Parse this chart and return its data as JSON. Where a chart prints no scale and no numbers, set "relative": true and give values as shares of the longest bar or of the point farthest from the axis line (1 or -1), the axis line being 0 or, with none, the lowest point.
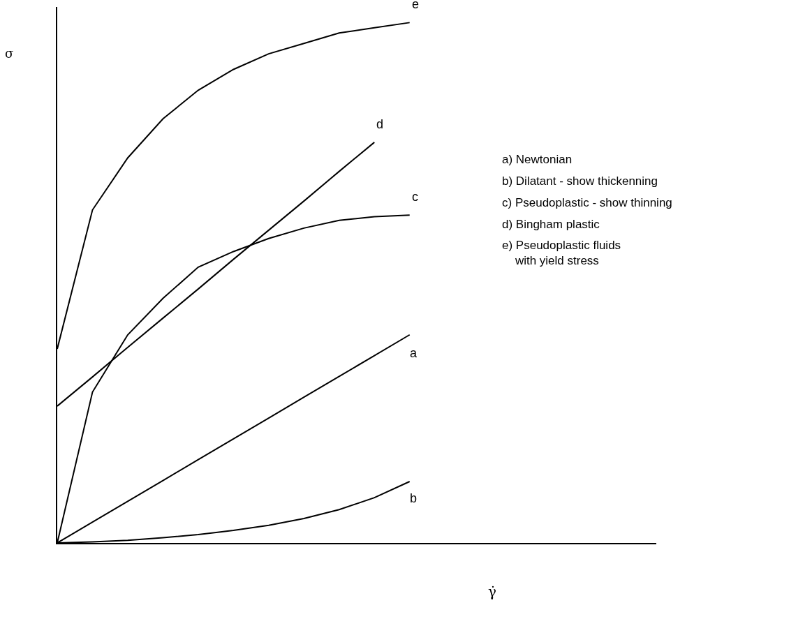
{
  "chart_data": {
    "type": "line",
    "relative": true,
    "xlabel": "γ̇",
    "ylabel": "σ",
    "legend": false,
    "marker": "none",
    "line_style": "solid",
    "categories": [
      null,
      null,
      null,
      null,
      null,
      null,
      null,
      null,
      null,
      null,
      null,
      null,
      null,
      null,
      null,
      null,
      null,
      null
    ],
    "series": [
      {
        "name": "a",
        "color": "#000000",
        "values": [
          0,
          0.04,
          0.08,
          0.12,
          0.16,
          0.2,
          0.24,
          0.28,
          0.32,
          0.36,
          0.4,
          null,
          null,
          null,
          null,
          null,
          null,
          null
        ]
      },
      {
        "name": "b",
        "color": "#000000",
        "values": [
          0,
          0.002,
          0.005,
          0.01,
          0.016,
          0.024,
          0.034,
          0.047,
          0.064,
          0.087,
          0.118,
          null,
          null,
          null,
          null,
          null,
          null,
          null
        ]
      },
      {
        "name": "c",
        "color": "#000000",
        "values": [
          0,
          0.29,
          0.4,
          0.47,
          0.53,
          0.56,
          0.585,
          0.605,
          0.62,
          0.627,
          0.63,
          null,
          null,
          null,
          null,
          null,
          null,
          null
        ]
      },
      {
        "name": "d",
        "color": "#000000",
        "values": [
          0.263,
          0.319,
          0.376,
          0.432,
          0.488,
          0.545,
          0.601,
          0.657,
          0.714,
          0.77,
          null,
          null,
          null,
          null,
          null,
          null,
          null,
          null
        ]
      },
      {
        "name": "e",
        "color": "#000000",
        "values": [
          0.373,
          0.64,
          0.74,
          0.815,
          0.87,
          0.91,
          0.94,
          0.96,
          0.98,
          0.99,
          1,
          null,
          null,
          null,
          null,
          null,
          null,
          null
        ]
      }
    ],
    "annotations": [
      "a) Newtonian",
      "b) Dilatant - show thickenning",
      "c) Pseudoplastic - show thinning",
      "d) Bingham plastic",
      "e) Pseudoplastic fluids\n    with yield stress"
    ]
  }
}
